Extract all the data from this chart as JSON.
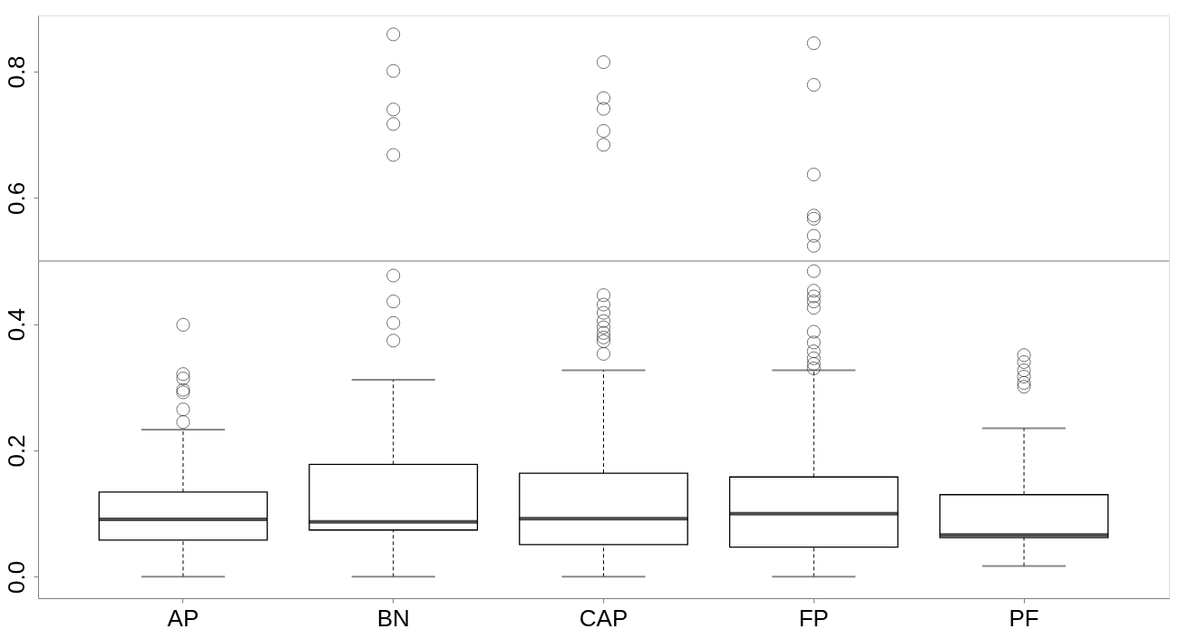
{
  "chart_data": {
    "type": "box",
    "categories": [
      "AP",
      "BN",
      "CAP",
      "FP",
      "PF"
    ],
    "boxes": [
      {
        "low": 0,
        "q1": 0.058,
        "median": 0.091,
        "q3": 0.134,
        "high": 0.233,
        "outliers": [
          0.399,
          0.321,
          0.314,
          0.296,
          0.292,
          0.265,
          0.245
        ]
      },
      {
        "low": 0,
        "q1": 0.074,
        "median": 0.087,
        "q3": 0.178,
        "high": 0.312,
        "outliers": [
          0.859,
          0.801,
          0.74,
          0.717,
          0.668,
          0.477,
          0.436,
          0.402,
          0.374
        ]
      },
      {
        "low": 0,
        "q1": 0.051,
        "median": 0.092,
        "q3": 0.164,
        "high": 0.327,
        "outliers": [
          0.815,
          0.758,
          0.741,
          0.706,
          0.684,
          0.446,
          0.431,
          0.418,
          0.405,
          0.395,
          0.386,
          0.379,
          0.373,
          0.353
        ]
      },
      {
        "low": 0,
        "q1": 0.047,
        "median": 0.1,
        "q3": 0.158,
        "high": 0.327,
        "outliers": [
          0.845,
          0.779,
          0.637,
          0.572,
          0.567,
          0.54,
          0.524,
          0.484,
          0.453,
          0.444,
          0.436,
          0.426,
          0.388,
          0.371,
          0.357,
          0.346,
          0.337,
          0.33
        ]
      },
      {
        "low": 0.017,
        "q1": 0.062,
        "median": 0.066,
        "q3": 0.13,
        "high": 0.235,
        "outliers": [
          0.351,
          0.34,
          0.327,
          0.317,
          0.307,
          0.301
        ]
      }
    ],
    "ylim": [
      -0.034,
      0.889
    ],
    "yticks": [
      {
        "value": 0,
        "label": "0.0"
      },
      0.2,
      0.4,
      0.6,
      0.8
    ],
    "ref_lines": [
      {
        "axis": "y",
        "value": 0.5,
        "color": "#a0a0a0"
      }
    ]
  }
}
